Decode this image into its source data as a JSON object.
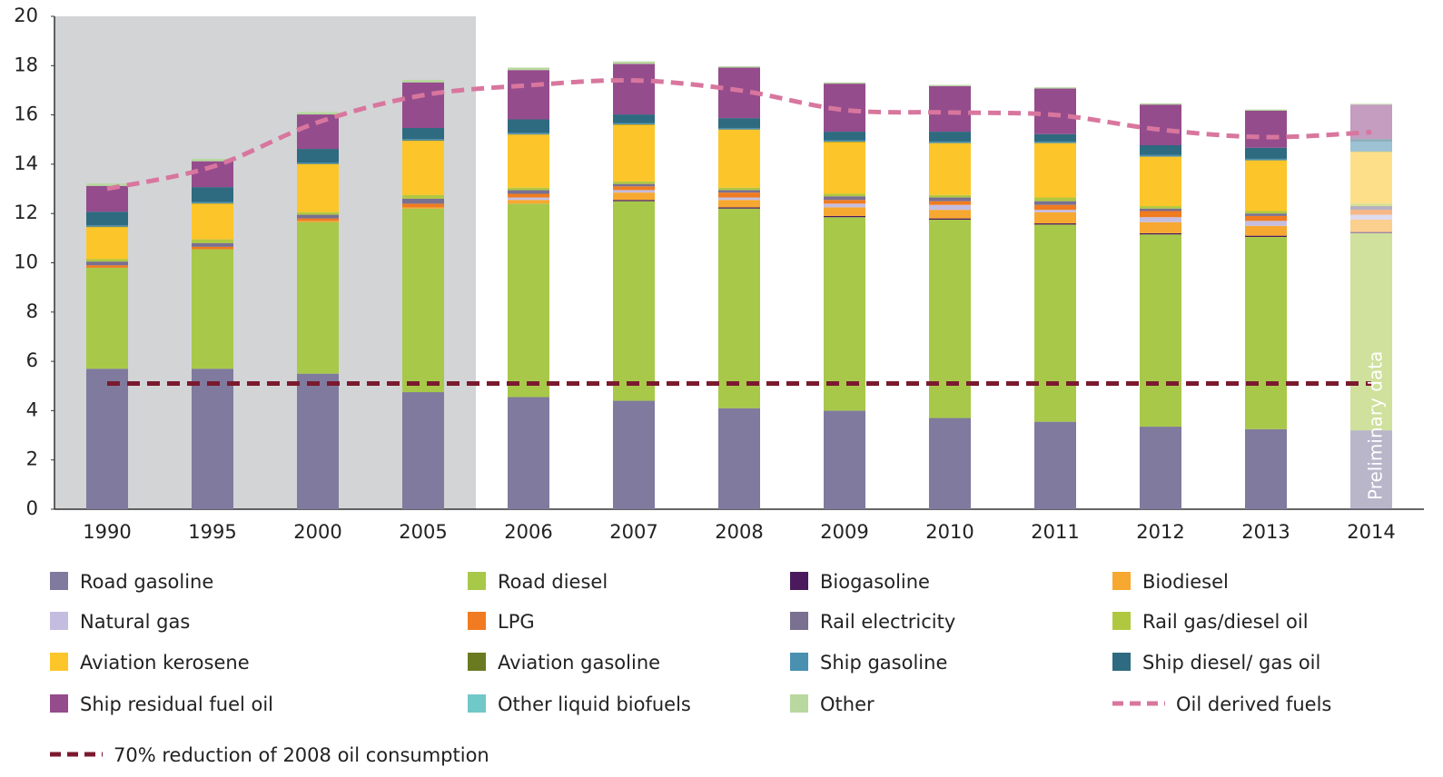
{
  "chart_data": {
    "type": "stacked_bar",
    "annotation": "Preliminary data",
    "categories": [
      "1990",
      "1995",
      "2000",
      "2005",
      "2006",
      "2007",
      "2008",
      "2009",
      "2010",
      "2011",
      "2012",
      "2013",
      "2014"
    ],
    "ylim": [
      0,
      20
    ],
    "yticks": [
      0,
      2,
      4,
      6,
      8,
      10,
      12,
      14,
      16,
      18,
      20
    ],
    "series": [
      {
        "name": "Road gasoline",
        "color": "#7f7a9e",
        "values": [
          5.7,
          5.7,
          5.5,
          4.75,
          4.55,
          4.4,
          4.1,
          4.0,
          3.7,
          3.55,
          3.35,
          3.25,
          3.2
        ]
      },
      {
        "name": "Road diesel",
        "color": "#a8c84a",
        "values": [
          4.1,
          4.85,
          6.15,
          7.45,
          7.85,
          8.1,
          8.1,
          7.85,
          8.05,
          8.0,
          7.8,
          7.8,
          8.0
        ]
      },
      {
        "name": "Biogasoline",
        "color": "#4a1a5c",
        "values": [
          0,
          0,
          0,
          0,
          0,
          0.05,
          0.05,
          0.05,
          0.05,
          0.05,
          0.05,
          0.05,
          0.05
        ]
      },
      {
        "name": "Biodiesel",
        "color": "#f7a830",
        "values": [
          0,
          0,
          0.05,
          0.05,
          0.15,
          0.3,
          0.3,
          0.35,
          0.35,
          0.45,
          0.45,
          0.4,
          0.5
        ]
      },
      {
        "name": "Natural gas",
        "color": "#c4bde0",
        "values": [
          0,
          0,
          0,
          0,
          0.1,
          0.1,
          0.1,
          0.15,
          0.2,
          0.1,
          0.2,
          0.2,
          0.2
        ]
      },
      {
        "name": "LPG",
        "color": "#f07b20",
        "values": [
          0.1,
          0.1,
          0.1,
          0.15,
          0.15,
          0.15,
          0.2,
          0.15,
          0.15,
          0.2,
          0.25,
          0.2,
          0.2
        ]
      },
      {
        "name": "Rail electricity",
        "color": "#7a7090",
        "values": [
          0.15,
          0.15,
          0.15,
          0.2,
          0.15,
          0.1,
          0.1,
          0.15,
          0.15,
          0.15,
          0.1,
          0.1,
          0.15
        ]
      },
      {
        "name": "Rail gas/diesel oil",
        "color": "#b0c840",
        "values": [
          0.1,
          0.15,
          0.1,
          0.15,
          0.1,
          0.1,
          0.1,
          0.1,
          0.1,
          0.15,
          0.1,
          0.1,
          0.1
        ]
      },
      {
        "name": "Aviation kerosene",
        "color": "#fcc52a",
        "values": [
          1.3,
          1.45,
          1.95,
          2.2,
          2.15,
          2.3,
          2.35,
          2.1,
          2.1,
          2.2,
          2.0,
          2.05,
          2.1
        ]
      },
      {
        "name": "Aviation gasoline",
        "color": "#6a7a20",
        "values": [
          0.02,
          0.02,
          0.02,
          0.02,
          0.02,
          0.02,
          0.02,
          0.02,
          0.02,
          0.02,
          0.02,
          0.02,
          0.02
        ]
      },
      {
        "name": "Ship gasoline",
        "color": "#4a90b0",
        "values": [
          0.05,
          0.05,
          0.05,
          0.05,
          0.05,
          0.05,
          0.05,
          0.05,
          0.05,
          0.05,
          0.05,
          0.05,
          0.4
        ]
      },
      {
        "name": "Ship diesel/ gas oil",
        "color": "#2e6a80",
        "values": [
          0.55,
          0.6,
          0.55,
          0.45,
          0.55,
          0.35,
          0.4,
          0.35,
          0.4,
          0.3,
          0.4,
          0.45,
          0.1
        ]
      },
      {
        "name": "Ship residual fuel oil",
        "color": "#944c8c",
        "values": [
          1.05,
          1.05,
          1.4,
          1.85,
          2.0,
          2.05,
          2.05,
          1.95,
          1.85,
          1.85,
          1.65,
          1.5,
          1.4
        ]
      },
      {
        "name": "Other liquid biofuels",
        "color": "#70c8c8",
        "values": [
          0,
          0,
          0,
          0,
          0,
          0,
          0,
          0,
          0,
          0,
          0,
          0,
          0
        ]
      },
      {
        "name": "Other",
        "color": "#b8d8a0",
        "values": [
          0.1,
          0.1,
          0.1,
          0.1,
          0.1,
          0.1,
          0.05,
          0.05,
          0.05,
          0.05,
          0.05,
          0.05,
          0.05
        ]
      },
      {
        "name": "Oil derived fuels",
        "type": "line",
        "color": "#d8769e",
        "values": [
          13.0,
          13.9,
          15.7,
          16.8,
          17.2,
          17.4,
          17.0,
          16.2,
          16.1,
          16.0,
          15.4,
          15.1,
          15.3
        ]
      },
      {
        "name": "70% reduction of 2008 oil consumption",
        "type": "line",
        "color": "#7a1a2e",
        "values": [
          5.1,
          5.1,
          5.1,
          5.1,
          5.1,
          5.1,
          5.1,
          5.1,
          5.1,
          5.1,
          5.1,
          5.1,
          5.1
        ]
      }
    ]
  }
}
